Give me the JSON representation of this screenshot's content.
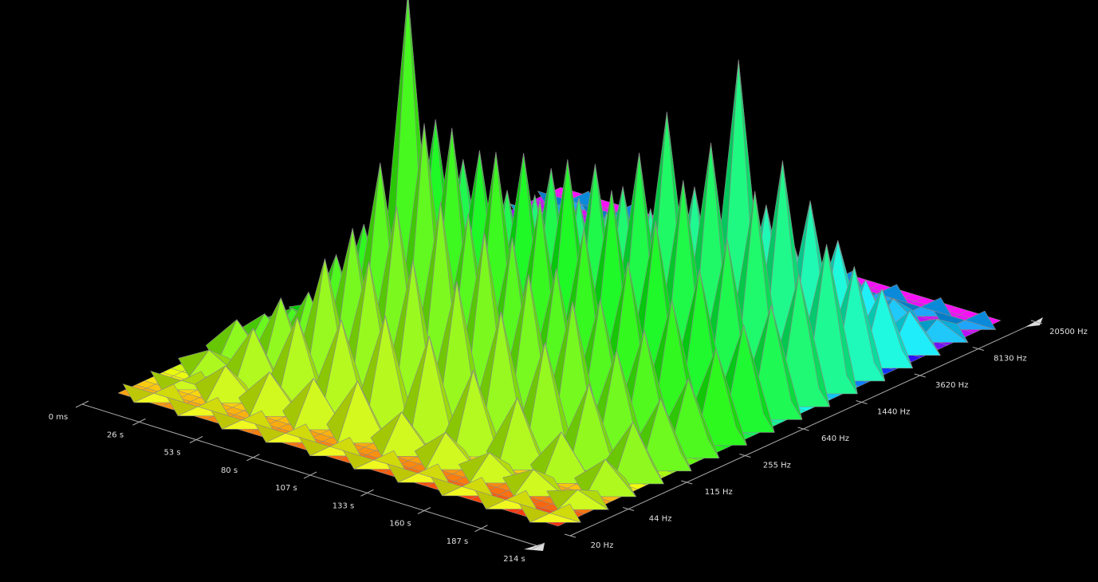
{
  "chart_data": {
    "type": "surface",
    "time_labels": [
      "0 ms",
      "26 s",
      "53 s",
      "80 s",
      "107 s",
      "133 s",
      "160 s",
      "187 s",
      "214 s"
    ],
    "frequency_labels": [
      "20 Hz",
      "44 Hz",
      "115 Hz",
      "255 Hz",
      "640 Hz",
      "1440 Hz",
      "3620 Hz",
      "8130 Hz",
      "20500 Hz"
    ],
    "zlim": [
      0,
      100
    ],
    "z": [
      [
        0,
        0,
        5,
        10,
        8,
        6,
        4,
        3,
        2,
        2,
        1,
        1,
        0,
        0,
        0,
        0
      ],
      [
        0,
        8,
        15,
        20,
        18,
        25,
        30,
        20,
        12,
        10,
        8,
        5,
        3,
        2,
        1,
        0
      ],
      [
        0,
        10,
        22,
        35,
        40,
        55,
        100,
        60,
        45,
        30,
        20,
        12,
        8,
        5,
        2,
        0
      ],
      [
        0,
        12,
        25,
        38,
        50,
        70,
        65,
        55,
        40,
        35,
        25,
        18,
        10,
        6,
        3,
        0
      ],
      [
        0,
        15,
        30,
        42,
        55,
        48,
        62,
        58,
        50,
        38,
        30,
        20,
        12,
        8,
        3,
        0
      ],
      [
        0,
        10,
        28,
        40,
        50,
        45,
        52,
        60,
        55,
        45,
        35,
        25,
        15,
        8,
        4,
        0
      ],
      [
        0,
        8,
        22,
        35,
        42,
        40,
        48,
        55,
        62,
        70,
        45,
        30,
        18,
        10,
        4,
        0
      ],
      [
        0,
        6,
        18,
        30,
        38,
        35,
        42,
        50,
        58,
        65,
        85,
        40,
        25,
        12,
        5,
        0
      ],
      [
        0,
        5,
        12,
        22,
        28,
        30,
        35,
        40,
        45,
        55,
        60,
        45,
        30,
        15,
        6,
        0
      ],
      [
        0,
        3,
        8,
        15,
        18,
        20,
        25,
        28,
        30,
        35,
        40,
        30,
        20,
        10,
        4,
        0
      ]
    ]
  }
}
